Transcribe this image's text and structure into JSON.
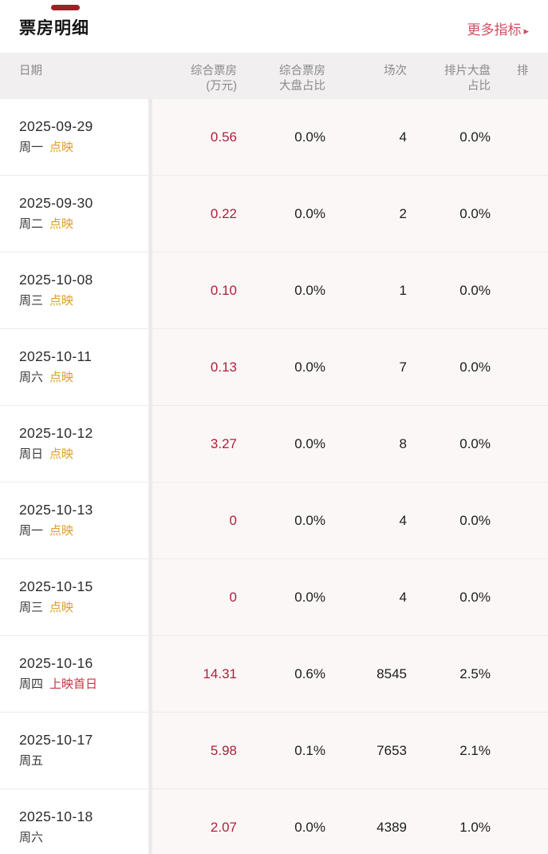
{
  "header": {
    "title": "票房明细",
    "more_label": "更多指标",
    "more_arrow": "▸"
  },
  "table": {
    "columns": [
      {
        "line1": "日期",
        "line2": ""
      },
      {
        "line1": "综合票房",
        "line2": "(万元)"
      },
      {
        "line1": "综合票房",
        "line2": "大盘占比"
      },
      {
        "line1": "场次",
        "line2": ""
      },
      {
        "line1": "排片大盘",
        "line2": "占比"
      },
      {
        "line1": "排",
        "line2": ""
      }
    ],
    "rows": [
      {
        "date": "2025-09-29",
        "week": "周一",
        "tag": "点映",
        "tag_type": "preview",
        "box": "0.56",
        "box_share": "0.0%",
        "sessions": "4",
        "sched_share": "0.0%"
      },
      {
        "date": "2025-09-30",
        "week": "周二",
        "tag": "点映",
        "tag_type": "preview",
        "box": "0.22",
        "box_share": "0.0%",
        "sessions": "2",
        "sched_share": "0.0%"
      },
      {
        "date": "2025-10-08",
        "week": "周三",
        "tag": "点映",
        "tag_type": "preview",
        "box": "0.10",
        "box_share": "0.0%",
        "sessions": "1",
        "sched_share": "0.0%"
      },
      {
        "date": "2025-10-11",
        "week": "周六",
        "tag": "点映",
        "tag_type": "preview",
        "box": "0.13",
        "box_share": "0.0%",
        "sessions": "7",
        "sched_share": "0.0%"
      },
      {
        "date": "2025-10-12",
        "week": "周日",
        "tag": "点映",
        "tag_type": "preview",
        "box": "3.27",
        "box_share": "0.0%",
        "sessions": "8",
        "sched_share": "0.0%"
      },
      {
        "date": "2025-10-13",
        "week": "周一",
        "tag": "点映",
        "tag_type": "preview",
        "box": "0",
        "box_share": "0.0%",
        "sessions": "4",
        "sched_share": "0.0%"
      },
      {
        "date": "2025-10-15",
        "week": "周三",
        "tag": "点映",
        "tag_type": "preview",
        "box": "0",
        "box_share": "0.0%",
        "sessions": "4",
        "sched_share": "0.0%"
      },
      {
        "date": "2025-10-16",
        "week": "周四",
        "tag": "上映首日",
        "tag_type": "premiere",
        "box": "14.31",
        "box_share": "0.6%",
        "sessions": "8545",
        "sched_share": "2.5%"
      },
      {
        "date": "2025-10-17",
        "week": "周五",
        "tag": "",
        "tag_type": "",
        "box": "5.98",
        "box_share": "0.1%",
        "sessions": "7653",
        "sched_share": "2.1%"
      },
      {
        "date": "2025-10-18",
        "week": "周六",
        "tag": "",
        "tag_type": "",
        "box": "2.07",
        "box_share": "0.0%",
        "sessions": "4389",
        "sched_share": "1.0%"
      }
    ]
  },
  "colors": {
    "accent_red": "#cf5062",
    "value_red": "#b01f3a",
    "tag_orange": "#dd9f24",
    "premiere_red": "#c53340",
    "indicator_maroon": "#9d2226",
    "header_bg": "#f1efef",
    "panel_tint": "#fcf7f7"
  }
}
